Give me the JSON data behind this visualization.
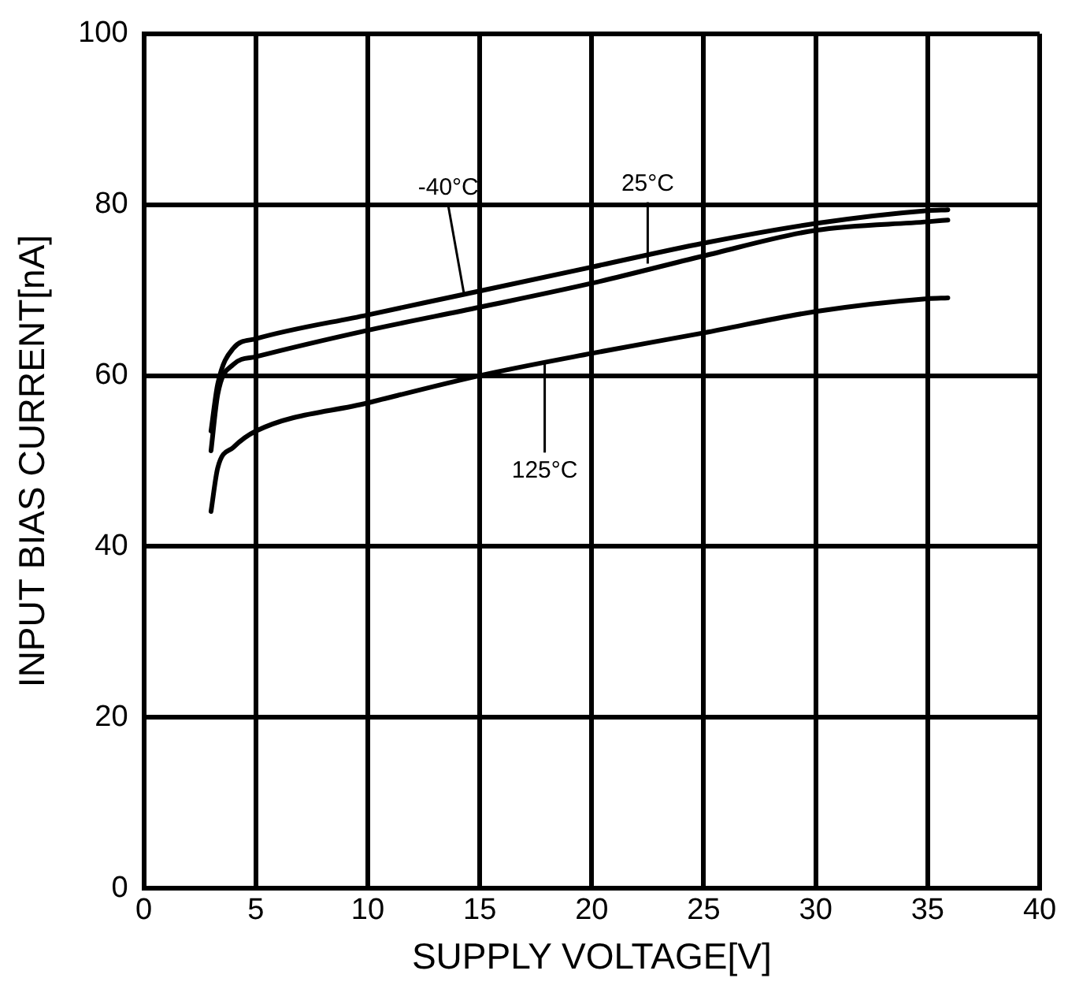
{
  "chart_data": {
    "type": "line",
    "xlabel": "SUPPLY VOLTAGE[V]",
    "ylabel": "INPUT BIAS CURRENT[nA]",
    "x": [
      3,
      3.3,
      4,
      5,
      10,
      15,
      20,
      25,
      30,
      35,
      35.9
    ],
    "series": [
      {
        "color": "#000000",
        "values": [
          53.5,
          59,
          63.2,
          64.3,
          67.1,
          69.9,
          72.7,
          75.5,
          77.8,
          79.3,
          79.4
        ]
      },
      {
        "color": "#000000",
        "values": [
          51.2,
          57.8,
          61.3,
          62.2,
          65.3,
          68.0,
          70.8,
          74.0,
          77.0,
          78.0,
          78.2
        ]
      },
      {
        "color": "#000000",
        "values": [
          44.1,
          49.2,
          51.6,
          53.5,
          56.8,
          60.0,
          62.6,
          65.0,
          67.5,
          69.0,
          69.1
        ]
      }
    ],
    "annotations": [
      {
        "text": "-40°C",
        "x": 14.3,
        "y": 69.5
      },
      {
        "text": "25°C",
        "x": 22.5,
        "y": 73.1
      },
      {
        "text": "125°C",
        "x": 17.9,
        "y": 61.5
      }
    ],
    "xlim": [
      0,
      40
    ],
    "xticks": [
      0,
      5,
      10,
      15,
      20,
      25,
      30,
      35,
      40
    ],
    "ylim": [
      0,
      100
    ],
    "yticks": [
      0,
      20,
      40,
      60,
      80,
      100
    ],
    "grid": true,
    "legend": false,
    "marker": "none",
    "line_style": "solid"
  }
}
